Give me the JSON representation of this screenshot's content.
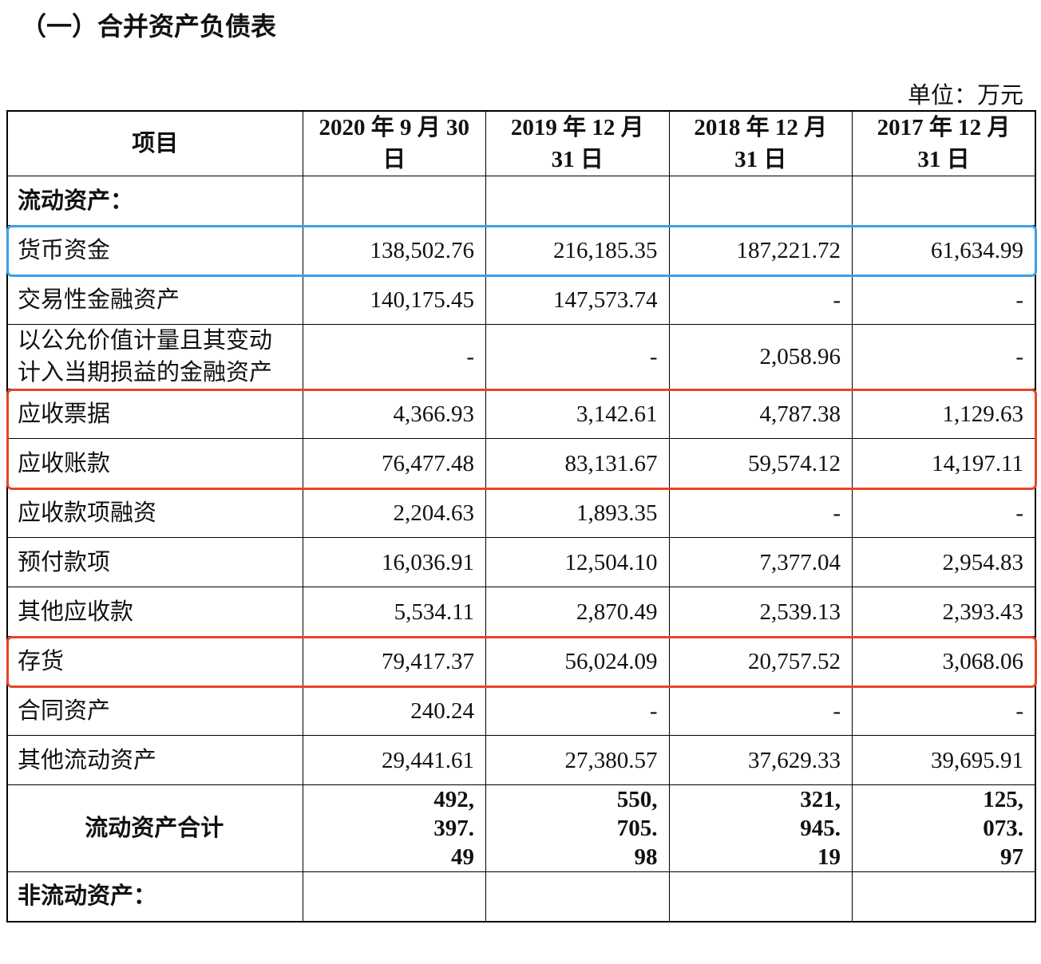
{
  "header": {
    "title": "（一）合并资产负债表",
    "unit": "单位：万元"
  },
  "table": {
    "columns": [
      "项目",
      "2020 年 9 月 30 日",
      "2019 年 12 月 31 日",
      "2018 年 12 月 31 日",
      "2017 年 12 月 31 日"
    ],
    "rows": [
      {
        "section": "流动资产："
      },
      {
        "item": "货币资金",
        "values": [
          "138,502.76",
          "216,185.35",
          "187,221.72",
          "61,634.99"
        ],
        "highlight": "blue"
      },
      {
        "item": "交易性金融资产",
        "values": [
          "140,175.45",
          "147,573.74",
          "-",
          "-"
        ]
      },
      {
        "item": "以公允价值计量且其变动计入当期损益的金融资产",
        "values": [
          "-",
          "-",
          "2,058.96",
          "-"
        ]
      },
      {
        "item": "应收票据",
        "values": [
          "4,366.93",
          "3,142.61",
          "4,787.38",
          "1,129.63"
        ],
        "highlight": "red"
      },
      {
        "item": "应收账款",
        "values": [
          "76,477.48",
          "83,131.67",
          "59,574.12",
          "14,197.11"
        ],
        "highlight": "red"
      },
      {
        "item": "应收款项融资",
        "values": [
          "2,204.63",
          "1,893.35",
          "-",
          "-"
        ]
      },
      {
        "item": "预付款项",
        "values": [
          "16,036.91",
          "12,504.10",
          "7,377.04",
          "2,954.83"
        ]
      },
      {
        "item": "其他应收款",
        "values": [
          "5,534.11",
          "2,870.49",
          "2,539.13",
          "2,393.43"
        ]
      },
      {
        "item": "存货",
        "values": [
          "79,417.37",
          "56,024.09",
          "20,757.52",
          "3,068.06"
        ],
        "highlight": "red"
      },
      {
        "item": "合同资产",
        "values": [
          "240.24",
          "-",
          "-",
          "-"
        ]
      },
      {
        "item": "其他流动资产",
        "values": [
          "29,441.61",
          "27,380.57",
          "37,629.33",
          "39,695.91"
        ]
      },
      {
        "total": "流动资产合计",
        "values": [
          "492,397.49",
          "550,705.98",
          "321,945.19",
          "125,073.97"
        ]
      },
      {
        "section": "非流动资产："
      }
    ]
  }
}
